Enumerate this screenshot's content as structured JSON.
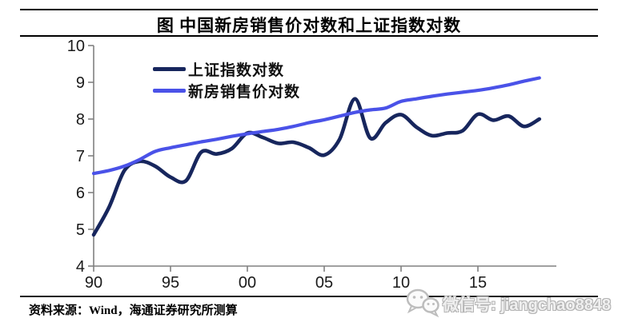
{
  "header": {
    "title": "图  中国新房销售价对数和上证指数对数"
  },
  "legend": {
    "items": [
      {
        "label": "上证指数对数",
        "color": "#17265d"
      },
      {
        "label": "新房销售价对数",
        "color": "#4a52e8"
      }
    ]
  },
  "footer": {
    "source": "资料来源：Wind，海通证券研究所测算"
  },
  "watermark": {
    "wechat_label": "微信号: jiangchao8848"
  },
  "chart_data": {
    "type": "line",
    "title": "图 中国新房销售价对数和上证指数对数",
    "x": [
      1990,
      1991,
      1992,
      1993,
      1994,
      1995,
      1996,
      1997,
      1998,
      1999,
      2000,
      2001,
      2002,
      2003,
      2004,
      2005,
      2006,
      2007,
      2008,
      2009,
      2010,
      2011,
      2012,
      2013,
      2014,
      2015,
      2016,
      2017,
      2018,
      2019
    ],
    "series": [
      {
        "name": "上证指数对数",
        "color": "#17265d",
        "values": [
          4.85,
          5.6,
          6.6,
          6.85,
          6.72,
          6.42,
          6.32,
          7.1,
          7.05,
          7.2,
          7.62,
          7.5,
          7.34,
          7.37,
          7.22,
          7.02,
          7.45,
          8.55,
          7.48,
          7.9,
          8.12,
          7.78,
          7.55,
          7.62,
          7.68,
          8.13,
          7.97,
          8.08,
          7.8,
          8.0
        ]
      },
      {
        "name": "新房销售价对数",
        "color": "#4a52e8",
        "values": [
          6.52,
          6.6,
          6.72,
          6.9,
          7.12,
          7.22,
          7.3,
          7.38,
          7.45,
          7.53,
          7.6,
          7.66,
          7.72,
          7.8,
          7.9,
          7.98,
          8.08,
          8.18,
          8.25,
          8.3,
          8.48,
          8.55,
          8.62,
          8.68,
          8.73,
          8.78,
          8.85,
          8.93,
          9.03,
          9.12
        ]
      }
    ],
    "ylim": [
      4,
      10
    ],
    "yticks": [
      4,
      5,
      6,
      7,
      8,
      9,
      10
    ],
    "ytick_labels": [
      "4",
      "5",
      "6",
      "7",
      "8",
      "9",
      "10"
    ],
    "xticks": {
      "values": [
        1990,
        1995,
        2000,
        2005,
        2010,
        2015
      ],
      "labels": [
        "90",
        "95",
        "00",
        "05",
        "10",
        "15"
      ]
    },
    "grid": false,
    "legend_position": "top-left-inside",
    "axis_color": "#808080",
    "tick_label_color": "#1a1a1a"
  }
}
